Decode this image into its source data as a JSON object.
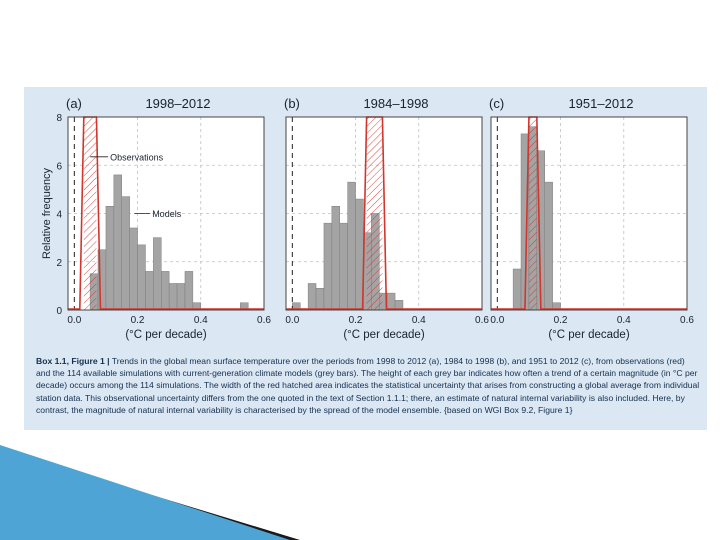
{
  "chart_data": [
    {
      "type": "bar",
      "panel_label": "(a)",
      "title": "1998–2012",
      "ylabel": "Relative frequency",
      "xlabel": "(°C per decade)",
      "xlim": [
        -0.02,
        0.6
      ],
      "ylim": [
        0,
        8
      ],
      "xticks": [
        "0.0",
        "0.2",
        "0.4",
        "0.6"
      ],
      "yticks": [
        "0",
        "2",
        "4",
        "6",
        "8"
      ],
      "bin_width": 0.025,
      "series": [
        {
          "name": "Models",
          "x": [
            0.05,
            0.075,
            0.1,
            0.125,
            0.15,
            0.175,
            0.2,
            0.225,
            0.25,
            0.275,
            0.3,
            0.325,
            0.35,
            0.375,
            0.525
          ],
          "values": [
            1.5,
            2.5,
            4.3,
            5.6,
            4.7,
            3.4,
            2.7,
            1.6,
            3.0,
            1.6,
            1.1,
            1.1,
            1.6,
            0.3,
            0.3
          ]
        }
      ],
      "observation_range": [
        0.03,
        0.07
      ],
      "zero_line": 0.0,
      "annotations": [
        "Observations",
        "Models"
      ]
    },
    {
      "type": "bar",
      "panel_label": "(b)",
      "title": "1984–1998",
      "xlabel": "(°C per decade)",
      "xlim": [
        -0.02,
        0.6
      ],
      "ylim": [
        0,
        8
      ],
      "xticks": [
        "0.0",
        "0.2",
        "0.4",
        "0.6"
      ],
      "bin_width": 0.025,
      "series": [
        {
          "name": "Models",
          "x": [
            0.0,
            0.05,
            0.075,
            0.1,
            0.125,
            0.15,
            0.175,
            0.2,
            0.225,
            0.25,
            0.275,
            0.3,
            0.325
          ],
          "values": [
            0.3,
            1.1,
            0.9,
            3.6,
            4.3,
            3.6,
            5.3,
            4.6,
            3.2,
            4.0,
            0.7,
            0.7,
            0.4
          ]
        }
      ],
      "observation_range": [
        0.235,
        0.285
      ],
      "zero_line": 0.0
    },
    {
      "type": "bar",
      "panel_label": "(c)",
      "title": "1951–2012",
      "xlabel": "(°C per decade)",
      "xlim": [
        -0.02,
        0.6
      ],
      "ylim": [
        0,
        8
      ],
      "xticks": [
        "0.0",
        "0.2",
        "0.4",
        "0.6"
      ],
      "bin_width": 0.025,
      "series": [
        {
          "name": "Models",
          "x": [
            0.05,
            0.075,
            0.1,
            0.125,
            0.15,
            0.175
          ],
          "values": [
            1.7,
            7.3,
            7.6,
            6.6,
            5.3,
            0.3
          ]
        }
      ],
      "observation_range": [
        0.1,
        0.125
      ],
      "zero_line": 0.0
    }
  ],
  "colors": {
    "panel_background": "#dbe7f3",
    "plot_background": "#ffffff",
    "bars": "#a4a4a4",
    "observations": "#d2352c",
    "caption_text": "#15304f",
    "decor_blue": "#4ea4d4",
    "decor_dark": "#1a1a1a"
  },
  "caption": {
    "label": "Box 1.1, Figure 1 |",
    "text": " Trends in the global mean surface temperature over the periods from 1998 to 2012 (a), 1984 to 1998 (b), and 1951 to 2012 (c), from observations (red) and the 114 available simulations with current-generation climate models (grey bars). The height of each grey bar indicates how often a trend of a certain magnitude (in °C per decade) occurs among the 114 simulations. The width of the red hatched area indicates the statistical uncertainty that arises from constructing a global average from individual station data. This observational uncertainty differs from the one quoted in the text of Section 1.1.1; there, an estimate of natural internal variability is also included. Here, by contrast, the magnitude of natural internal variability is characterised by the spread of the model ensemble. {based on WGI Box 9.2, Figure 1}"
  }
}
